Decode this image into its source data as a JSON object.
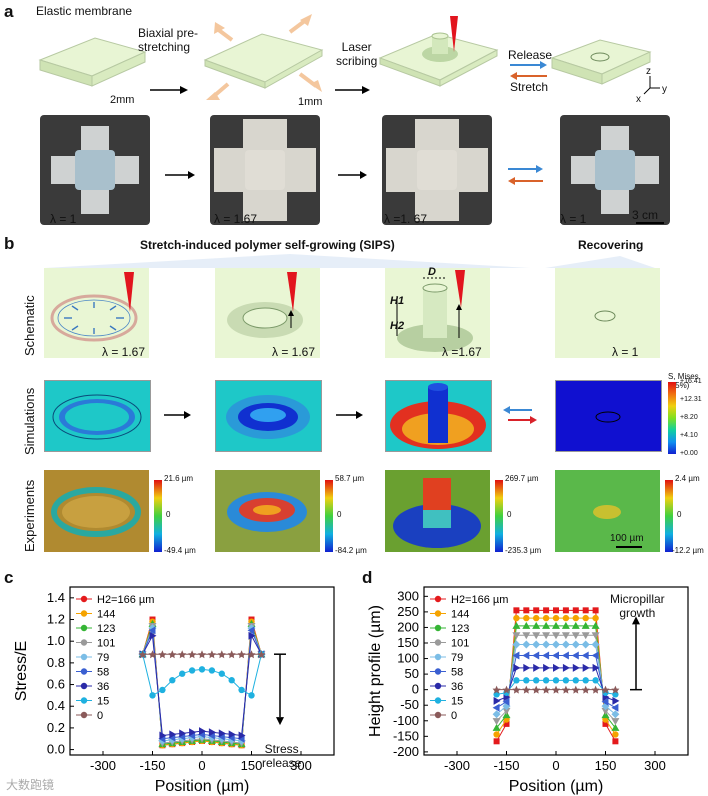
{
  "panels": {
    "a": "a",
    "b": "b",
    "c": "c",
    "d": "d"
  },
  "panel_a": {
    "elastic_label": "Elastic membrane",
    "step1_l1": "Biaxial pre-",
    "step1_l2": "stretching",
    "step2_l1": "Laser",
    "step2_l2": "scribing",
    "release": "Release",
    "stretch": "Stretch",
    "thick1": "2mm",
    "thick2": "1mm",
    "axis_z": "z",
    "axis_x": "x",
    "axis_y": "y",
    "lambda_labels": [
      "λ = 1",
      "λ = 1.67",
      "λ =1. 67",
      "λ = 1"
    ],
    "scale": "3 cm"
  },
  "panel_b": {
    "header_sips": "Stretch-induced polymer self-growing (SIPS)",
    "header_recovering": "Recovering",
    "row_schematic": "Schematic",
    "row_simulations": "Simulations",
    "row_experiments": "Experiments",
    "schematic_lambdas": [
      "λ = 1.67",
      "λ = 1.67",
      "λ =1.67",
      "λ = 1"
    ],
    "dim_D": "D",
    "dim_H1": "H1",
    "dim_H2": "H2",
    "legend_title": "S, Mises (75%)",
    "legend_ticks": [
      "+16.41",
      "+12.31",
      "+8.20",
      "+4.10",
      "+0.00"
    ],
    "exp_scales": [
      {
        "max": "21.6 µm",
        "mid": "0",
        "min": "-49.4 µm"
      },
      {
        "max": "58.7 µm",
        "mid": "0",
        "min": "-84.2 µm"
      },
      {
        "max": "269.7 µm",
        "mid": "0",
        "min": "-235.3 µm"
      },
      {
        "max": "2.4 µm",
        "mid": "0",
        "min": "-12.2 µm"
      }
    ],
    "scale_bar": "100 µm"
  },
  "chart_c_text": {
    "note_l1": "Stress",
    "note_l2": "release"
  },
  "chart_d_text": {
    "note_l1": "Micropillar",
    "note_l2": "growth"
  },
  "watermark": "大数跑镜",
  "series_colors": [
    "#e41a1c",
    "#f5a300",
    "#35b535",
    "#9a9a9a",
    "#7bbde6",
    "#3a5fd1",
    "#2a2aa8",
    "#1fb1e0",
    "#8a5a5a",
    "#8a8a2a"
  ],
  "chart_data": [
    {
      "type": "line",
      "title": "",
      "xlabel": "Position (µm)",
      "ylabel": "Stress/E",
      "xlim": [
        -400,
        400
      ],
      "ylim": [
        -0.05,
        1.5
      ],
      "xticks": [
        -300,
        -150,
        0,
        150,
        300
      ],
      "yticks": [
        0.0,
        0.2,
        0.4,
        0.6,
        0.8,
        1.0,
        1.2,
        1.4
      ],
      "legend_position": "top-left",
      "series": [
        {
          "name": "H2=166 µm",
          "x": [
            -180,
            -150,
            -120,
            -90,
            -60,
            -30,
            0,
            30,
            60,
            90,
            120,
            150,
            180
          ],
          "y": [
            0.88,
            1.2,
            0.04,
            0.05,
            0.06,
            0.07,
            0.08,
            0.07,
            0.06,
            0.05,
            0.04,
            1.2,
            0.88
          ]
        },
        {
          "name": "144",
          "x": [
            -180,
            -150,
            -120,
            -90,
            -60,
            -30,
            0,
            30,
            60,
            90,
            120,
            150,
            180
          ],
          "y": [
            0.88,
            1.18,
            0.04,
            0.05,
            0.06,
            0.07,
            0.08,
            0.07,
            0.06,
            0.05,
            0.04,
            1.18,
            0.88
          ]
        },
        {
          "name": "123",
          "x": [
            -180,
            -150,
            -120,
            -90,
            -60,
            -30,
            0,
            30,
            60,
            90,
            120,
            150,
            180
          ],
          "y": [
            0.88,
            1.16,
            0.05,
            0.06,
            0.07,
            0.08,
            0.09,
            0.08,
            0.07,
            0.06,
            0.05,
            1.16,
            0.88
          ]
        },
        {
          "name": "101",
          "x": [
            -180,
            -150,
            -120,
            -90,
            -60,
            -30,
            0,
            30,
            60,
            90,
            120,
            150,
            180
          ],
          "y": [
            0.88,
            1.14,
            0.06,
            0.07,
            0.08,
            0.09,
            0.1,
            0.09,
            0.08,
            0.07,
            0.06,
            1.14,
            0.88
          ]
        },
        {
          "name": "79",
          "x": [
            -180,
            -150,
            -120,
            -90,
            -60,
            -30,
            0,
            30,
            60,
            90,
            120,
            150,
            180
          ],
          "y": [
            0.88,
            1.12,
            0.08,
            0.09,
            0.1,
            0.11,
            0.12,
            0.11,
            0.1,
            0.09,
            0.08,
            1.12,
            0.88
          ]
        },
        {
          "name": "58",
          "x": [
            -180,
            -150,
            -120,
            -90,
            -60,
            -30,
            0,
            30,
            60,
            90,
            120,
            150,
            180
          ],
          "y": [
            0.88,
            1.1,
            0.1,
            0.11,
            0.12,
            0.13,
            0.14,
            0.13,
            0.12,
            0.11,
            0.1,
            1.1,
            0.88
          ]
        },
        {
          "name": "36",
          "x": [
            -180,
            -150,
            -120,
            -90,
            -60,
            -30,
            0,
            30,
            60,
            90,
            120,
            150,
            180
          ],
          "y": [
            0.88,
            1.05,
            0.13,
            0.14,
            0.15,
            0.16,
            0.17,
            0.16,
            0.15,
            0.14,
            0.13,
            1.05,
            0.88
          ]
        },
        {
          "name": "15",
          "x": [
            -180,
            -150,
            -120,
            -90,
            -60,
            -30,
            0,
            30,
            60,
            90,
            120,
            150,
            180
          ],
          "y": [
            0.88,
            0.5,
            0.55,
            0.64,
            0.7,
            0.73,
            0.74,
            0.73,
            0.7,
            0.64,
            0.55,
            0.5,
            0.88
          ]
        },
        {
          "name": "0",
          "x": [
            -180,
            -150,
            -120,
            -90,
            -60,
            -30,
            0,
            30,
            60,
            90,
            120,
            150,
            180
          ],
          "y": [
            0.88,
            0.88,
            0.88,
            0.88,
            0.88,
            0.88,
            0.88,
            0.88,
            0.88,
            0.88,
            0.88,
            0.88,
            0.88
          ]
        }
      ]
    },
    {
      "type": "line",
      "title": "",
      "xlabel": "Position (µm)",
      "ylabel": "Height profile (µm)",
      "xlim": [
        -400,
        400
      ],
      "ylim": [
        -210,
        330
      ],
      "xticks": [
        -300,
        -150,
        0,
        150,
        300
      ],
      "yticks": [
        -200,
        -150,
        -100,
        -50,
        0,
        50,
        100,
        150,
        200,
        250,
        300
      ],
      "legend_position": "top-left",
      "series": [
        {
          "name": "H2=166 µm",
          "x": [
            -180,
            -150,
            -120,
            -90,
            -60,
            -30,
            0,
            30,
            60,
            90,
            120,
            150,
            180
          ],
          "y": [
            -166,
            -110,
            255,
            255,
            255,
            255,
            255,
            255,
            255,
            255,
            255,
            -110,
            -166
          ]
        },
        {
          "name": "144",
          "x": [
            -180,
            -150,
            -120,
            -90,
            -60,
            -30,
            0,
            30,
            60,
            90,
            120,
            150,
            180
          ],
          "y": [
            -144,
            -96,
            230,
            230,
            230,
            230,
            230,
            230,
            230,
            230,
            230,
            -96,
            -144
          ]
        },
        {
          "name": "123",
          "x": [
            -180,
            -150,
            -120,
            -90,
            -60,
            -30,
            0,
            30,
            60,
            90,
            120,
            150,
            180
          ],
          "y": [
            -123,
            -82,
            205,
            205,
            205,
            205,
            205,
            205,
            205,
            205,
            205,
            -82,
            -123
          ]
        },
        {
          "name": "101",
          "x": [
            -180,
            -150,
            -120,
            -90,
            -60,
            -30,
            0,
            30,
            60,
            90,
            120,
            150,
            180
          ],
          "y": [
            -101,
            -68,
            175,
            175,
            175,
            175,
            175,
            175,
            175,
            175,
            175,
            -68,
            -101
          ]
        },
        {
          "name": "79",
          "x": [
            -180,
            -150,
            -120,
            -90,
            -60,
            -30,
            0,
            30,
            60,
            90,
            120,
            150,
            180
          ],
          "y": [
            -79,
            -53,
            145,
            145,
            145,
            145,
            145,
            145,
            145,
            145,
            145,
            -53,
            -79
          ]
        },
        {
          "name": "58",
          "x": [
            -180,
            -150,
            -120,
            -90,
            -60,
            -30,
            0,
            30,
            60,
            90,
            120,
            150,
            180
          ],
          "y": [
            -58,
            -39,
            110,
            110,
            110,
            110,
            110,
            110,
            110,
            110,
            110,
            -39,
            -58
          ]
        },
        {
          "name": "36",
          "x": [
            -180,
            -150,
            -120,
            -90,
            -60,
            -30,
            0,
            30,
            60,
            90,
            120,
            150,
            180
          ],
          "y": [
            -36,
            -24,
            70,
            70,
            70,
            70,
            70,
            70,
            70,
            70,
            70,
            -24,
            -36
          ]
        },
        {
          "name": "15",
          "x": [
            -180,
            -150,
            -120,
            -90,
            -60,
            -30,
            0,
            30,
            60,
            90,
            120,
            150,
            180
          ],
          "y": [
            -15,
            -10,
            30,
            30,
            30,
            30,
            30,
            30,
            30,
            30,
            30,
            -10,
            -15
          ]
        },
        {
          "name": "0",
          "x": [
            -180,
            -150,
            -120,
            -90,
            -60,
            -30,
            0,
            30,
            60,
            90,
            120,
            150,
            180
          ],
          "y": [
            0,
            0,
            0,
            0,
            0,
            0,
            0,
            0,
            0,
            0,
            0,
            0,
            0
          ]
        }
      ]
    }
  ]
}
